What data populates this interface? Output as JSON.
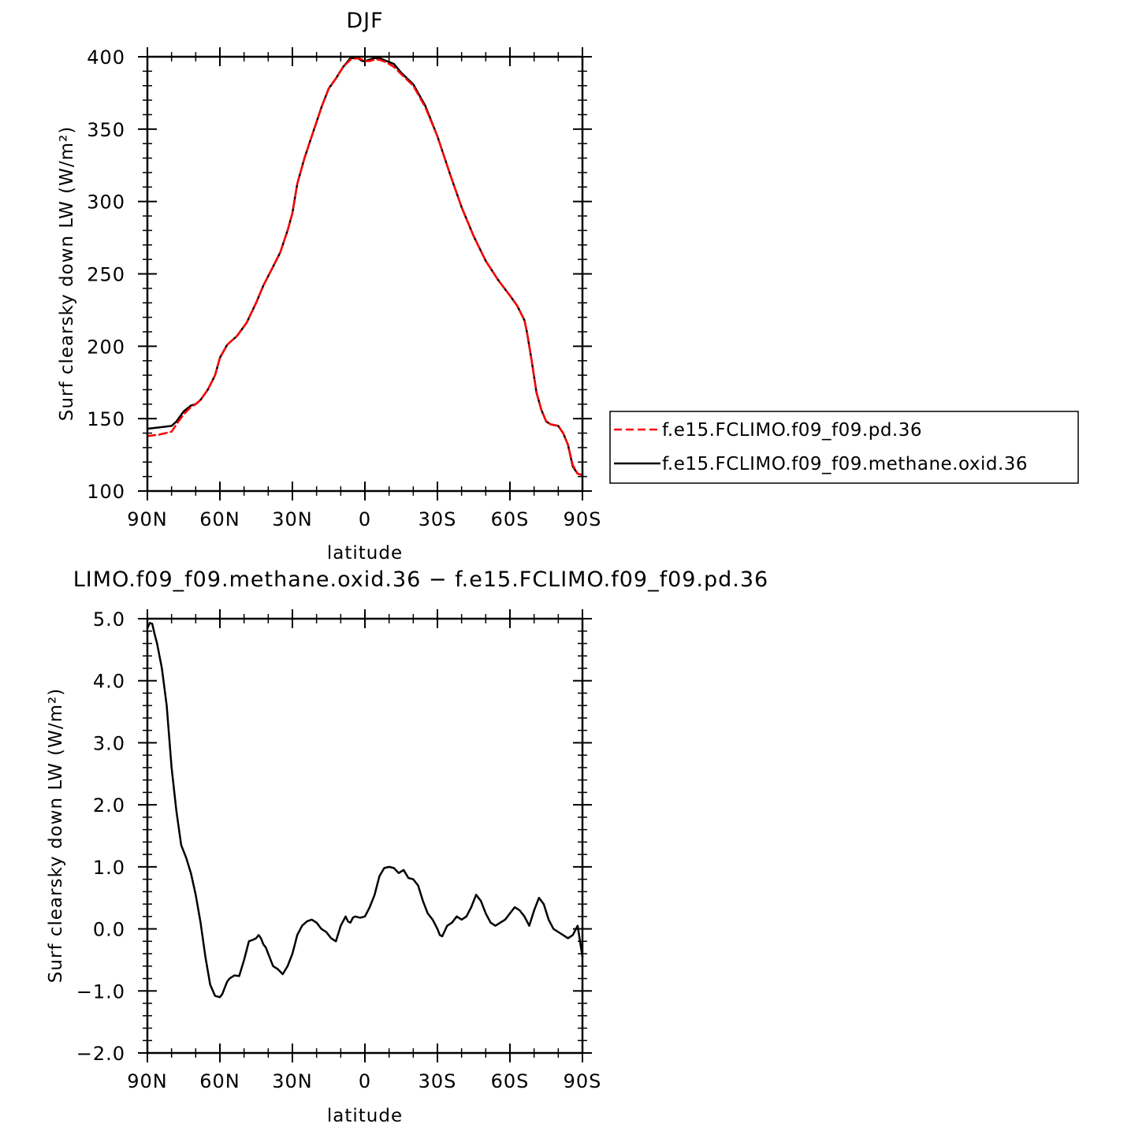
{
  "chart_data": [
    {
      "type": "line",
      "title": "DJF",
      "xlabel": "latitude",
      "ylabel": "Surf clearsky down LW (W/m²)",
      "xlim": [
        90,
        -90
      ],
      "ylim": [
        100,
        400
      ],
      "xticks": [
        {
          "value": 90,
          "label": "90N"
        },
        {
          "value": 60,
          "label": "60N"
        },
        {
          "value": 30,
          "label": "30N"
        },
        {
          "value": 0,
          "label": "0"
        },
        {
          "value": -30,
          "label": "30S"
        },
        {
          "value": -60,
          "label": "60S"
        },
        {
          "value": -90,
          "label": "90S"
        }
      ],
      "yticks": [
        {
          "value": 100,
          "label": "100"
        },
        {
          "value": 150,
          "label": "150"
        },
        {
          "value": 200,
          "label": "200"
        },
        {
          "value": 250,
          "label": "250"
        },
        {
          "value": 300,
          "label": "300"
        },
        {
          "value": 350,
          "label": "350"
        },
        {
          "value": 400,
          "label": "400"
        }
      ],
      "legend_position": "right",
      "series": [
        {
          "name": "f.e15.FCLIMO.f09_f09.pd.36",
          "color": "#ff0000",
          "dash": "dashed",
          "x": [
            90,
            85,
            80,
            78,
            75,
            72,
            70,
            68,
            65,
            62,
            60,
            57,
            53,
            49,
            45,
            42,
            38,
            35,
            32,
            30,
            28,
            25,
            22,
            18,
            15,
            12,
            9,
            6,
            3,
            1,
            0,
            -2,
            -4,
            -6,
            -9,
            -12,
            -15,
            -20,
            -25,
            -30,
            -35,
            -40,
            -45,
            -50,
            -55,
            -60,
            -63,
            -66,
            -67,
            -69,
            -71,
            -73,
            -75,
            -77,
            -80,
            -82,
            -84,
            -86,
            -88,
            -90
          ],
          "y": [
            138,
            139,
            141,
            146,
            153,
            158,
            160,
            163,
            170,
            180,
            192,
            201,
            207,
            216,
            230,
            242,
            255,
            265,
            280,
            292,
            312,
            330,
            345,
            365,
            378,
            385,
            393,
            398,
            399,
            398,
            397,
            397,
            398,
            398,
            396,
            393,
            388,
            380,
            365,
            345,
            320,
            296,
            276,
            259,
            246,
            235,
            228,
            218,
            210,
            190,
            168,
            156,
            148,
            146,
            145,
            140,
            132,
            118,
            112,
            111
          ]
        },
        {
          "name": "f.e15.FCLIMO.f09_f09.methane.oxid.36",
          "color": "#000000",
          "dash": "solid",
          "x": [
            90,
            85,
            80,
            78,
            75,
            72,
            70,
            68,
            65,
            62,
            60,
            57,
            53,
            49,
            45,
            42,
            38,
            35,
            32,
            30,
            28,
            25,
            22,
            18,
            15,
            12,
            9,
            6,
            3,
            1,
            0,
            -2,
            -4,
            -6,
            -9,
            -12,
            -15,
            -20,
            -25,
            -30,
            -35,
            -40,
            -45,
            -50,
            -55,
            -60,
            -63,
            -66,
            -67,
            -69,
            -71,
            -73,
            -75,
            -77,
            -80,
            -82,
            -84,
            -86,
            -88,
            -90
          ],
          "y": [
            143,
            144,
            145,
            148,
            155,
            159,
            160,
            163,
            170,
            180,
            192,
            201,
            207,
            216,
            230,
            242,
            255,
            265,
            280,
            292,
            312,
            330,
            345,
            365,
            378,
            385,
            393,
            399,
            399,
            397,
            397,
            398,
            399,
            399,
            397,
            395,
            389,
            381,
            366,
            345,
            320,
            296,
            276,
            259,
            246,
            235,
            228,
            218,
            210,
            190,
            168,
            156,
            148,
            146,
            145,
            140,
            132,
            117,
            112,
            111
          ]
        }
      ]
    },
    {
      "type": "line",
      "title": "LIMO.f09_f09.methane.oxid.36 − f.e15.FCLIMO.f09_f09.pd.36",
      "xlabel": "latitude",
      "ylabel": "Surf clearsky down LW (W/m²)",
      "xlim": [
        90,
        -90
      ],
      "ylim": [
        -2.0,
        5.0
      ],
      "xticks": [
        {
          "value": 90,
          "label": "90N"
        },
        {
          "value": 60,
          "label": "60N"
        },
        {
          "value": 30,
          "label": "30N"
        },
        {
          "value": 0,
          "label": "0"
        },
        {
          "value": -30,
          "label": "30S"
        },
        {
          "value": -60,
          "label": "60S"
        },
        {
          "value": -90,
          "label": "90S"
        }
      ],
      "yticks": [
        {
          "value": -2.0,
          "label": "−2.0"
        },
        {
          "value": -1.0,
          "label": "−1.0"
        },
        {
          "value": 0.0,
          "label": "0.0"
        },
        {
          "value": 1.0,
          "label": "1.0"
        },
        {
          "value": 2.0,
          "label": "2.0"
        },
        {
          "value": 3.0,
          "label": "3.0"
        },
        {
          "value": 4.0,
          "label": "4.0"
        },
        {
          "value": 5.0,
          "label": "5.0"
        }
      ],
      "series": [
        {
          "color": "#000000",
          "dash": "solid",
          "x": [
            90,
            89,
            88,
            87,
            86,
            84,
            82,
            80,
            78,
            76,
            74,
            72,
            70,
            68,
            66,
            64,
            62,
            60,
            59,
            58,
            57,
            56,
            54,
            52,
            50,
            48,
            46,
            45,
            44,
            43,
            42,
            41,
            40,
            38,
            36,
            34,
            32,
            30,
            29,
            28,
            26,
            24,
            22,
            20,
            18,
            16,
            14,
            12,
            10,
            8,
            7,
            6,
            5,
            4,
            2,
            0,
            -2,
            -4,
            -6,
            -8,
            -10,
            -12,
            -14,
            -16,
            -18,
            -20,
            -22,
            -24,
            -26,
            -28,
            -30,
            -31,
            -32,
            -34,
            -36,
            -38,
            -40,
            -42,
            -44,
            -46,
            -48,
            -50,
            -52,
            -54,
            -56,
            -58,
            -60,
            -62,
            -64,
            -66,
            -68,
            -70,
            -72,
            -74,
            -76,
            -78,
            -80,
            -82,
            -84,
            -86,
            -88,
            -89,
            -90
          ],
          "y": [
            4.85,
            4.93,
            4.92,
            4.75,
            4.6,
            4.2,
            3.6,
            2.6,
            1.9,
            1.35,
            1.15,
            0.9,
            0.55,
            0.1,
            -0.45,
            -0.9,
            -1.08,
            -1.1,
            -1.05,
            -0.95,
            -0.85,
            -0.8,
            -0.75,
            -0.76,
            -0.5,
            -0.2,
            -0.17,
            -0.15,
            -0.1,
            -0.15,
            -0.25,
            -0.3,
            -0.4,
            -0.6,
            -0.65,
            -0.73,
            -0.6,
            -0.4,
            -0.25,
            -0.1,
            0.05,
            0.12,
            0.15,
            0.1,
            0.0,
            -0.05,
            -0.15,
            -0.2,
            0.05,
            0.2,
            0.12,
            0.1,
            0.18,
            0.2,
            0.18,
            0.2,
            0.35,
            0.55,
            0.85,
            0.98,
            1.0,
            0.98,
            0.9,
            0.95,
            0.82,
            0.8,
            0.7,
            0.45,
            0.25,
            0.15,
            0.0,
            -0.1,
            -0.12,
            0.05,
            0.1,
            0.2,
            0.15,
            0.2,
            0.35,
            0.55,
            0.45,
            0.25,
            0.1,
            0.05,
            0.1,
            0.15,
            0.25,
            0.35,
            0.3,
            0.2,
            0.05,
            0.3,
            0.5,
            0.4,
            0.15,
            0.0,
            -0.05,
            -0.1,
            -0.15,
            -0.1,
            0.05,
            -0.2,
            -0.45
          ]
        }
      ]
    }
  ]
}
